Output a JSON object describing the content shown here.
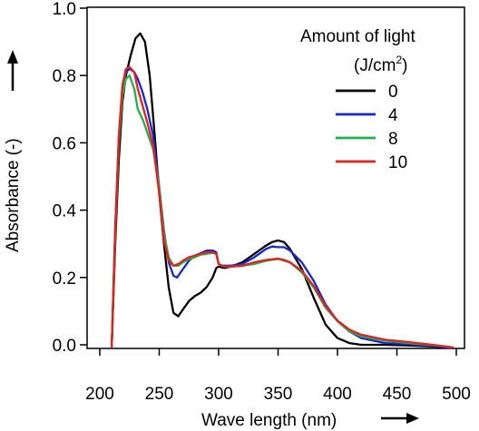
{
  "chart_data": {
    "type": "line",
    "xlabel": "Wave length (nm)",
    "ylabel": "Absorbance (-)",
    "xlim": [
      200,
      500
    ],
    "ylim": [
      0.0,
      1.0
    ],
    "x_ticks": [
      200,
      250,
      300,
      350,
      400,
      450,
      500
    ],
    "y_ticks": [
      "0.0",
      "0.2",
      "0.4",
      "0.6",
      "0.8",
      "1.0"
    ],
    "legend": {
      "title": "Amount of light",
      "unit_prefix": "(J/cm",
      "unit_sup": "2",
      "unit_suffix": ")",
      "placement": "top-right"
    },
    "grid": false,
    "series": [
      {
        "name": "0",
        "color": "#000000",
        "points": [
          [
            210,
            -0.01
          ],
          [
            213,
            0.3
          ],
          [
            216,
            0.55
          ],
          [
            219,
            0.72
          ],
          [
            222,
            0.8
          ],
          [
            226,
            0.86
          ],
          [
            230,
            0.91
          ],
          [
            234,
            0.925
          ],
          [
            238,
            0.9
          ],
          [
            242,
            0.8
          ],
          [
            246,
            0.63
          ],
          [
            250,
            0.45
          ],
          [
            254,
            0.3
          ],
          [
            258,
            0.17
          ],
          [
            262,
            0.095
          ],
          [
            266,
            0.085
          ],
          [
            270,
            0.105
          ],
          [
            275,
            0.13
          ],
          [
            280,
            0.145
          ],
          [
            285,
            0.155
          ],
          [
            290,
            0.172
          ],
          [
            295,
            0.2
          ],
          [
            298,
            0.228
          ],
          [
            300,
            0.232
          ],
          [
            305,
            0.228
          ],
          [
            310,
            0.232
          ],
          [
            320,
            0.245
          ],
          [
            330,
            0.27
          ],
          [
            340,
            0.295
          ],
          [
            345,
            0.305
          ],
          [
            350,
            0.31
          ],
          [
            355,
            0.305
          ],
          [
            360,
            0.285
          ],
          [
            370,
            0.225
          ],
          [
            380,
            0.14
          ],
          [
            390,
            0.06
          ],
          [
            400,
            0.02
          ],
          [
            410,
            0.005
          ],
          [
            420,
            0.0
          ],
          [
            440,
            0.0
          ],
          [
            460,
            -0.002
          ],
          [
            480,
            -0.005
          ],
          [
            498,
            -0.01
          ]
        ]
      },
      {
        "name": "4",
        "color": "#1428d2",
        "points": [
          [
            210,
            -0.01
          ],
          [
            213,
            0.35
          ],
          [
            216,
            0.62
          ],
          [
            219,
            0.76
          ],
          [
            222,
            0.81
          ],
          [
            225,
            0.82
          ],
          [
            229,
            0.81
          ],
          [
            232,
            0.79
          ],
          [
            236,
            0.75
          ],
          [
            240,
            0.7
          ],
          [
            245,
            0.62
          ],
          [
            250,
            0.47
          ],
          [
            254,
            0.34
          ],
          [
            258,
            0.245
          ],
          [
            262,
            0.205
          ],
          [
            265,
            0.2
          ],
          [
            270,
            0.225
          ],
          [
            275,
            0.25
          ],
          [
            280,
            0.265
          ],
          [
            285,
            0.272
          ],
          [
            290,
            0.28
          ],
          [
            295,
            0.28
          ],
          [
            298,
            0.275
          ],
          [
            300,
            0.24
          ],
          [
            303,
            0.235
          ],
          [
            310,
            0.235
          ],
          [
            320,
            0.24
          ],
          [
            330,
            0.26
          ],
          [
            340,
            0.285
          ],
          [
            345,
            0.292
          ],
          [
            350,
            0.29
          ],
          [
            355,
            0.29
          ],
          [
            360,
            0.28
          ],
          [
            370,
            0.245
          ],
          [
            380,
            0.19
          ],
          [
            390,
            0.12
          ],
          [
            400,
            0.07
          ],
          [
            410,
            0.04
          ],
          [
            420,
            0.02
          ],
          [
            440,
            0.005
          ],
          [
            460,
            0.002
          ],
          [
            480,
            -0.003
          ],
          [
            498,
            -0.01
          ]
        ]
      },
      {
        "name": "8",
        "color": "#22b14c",
        "points": [
          [
            210,
            -0.01
          ],
          [
            213,
            0.33
          ],
          [
            216,
            0.6
          ],
          [
            219,
            0.74
          ],
          [
            222,
            0.79
          ],
          [
            225,
            0.8
          ],
          [
            229,
            0.76
          ],
          [
            232,
            0.7
          ],
          [
            236,
            0.67
          ],
          [
            240,
            0.63
          ],
          [
            245,
            0.58
          ],
          [
            250,
            0.47
          ],
          [
            254,
            0.33
          ],
          [
            258,
            0.26
          ],
          [
            262,
            0.235
          ],
          [
            266,
            0.235
          ],
          [
            270,
            0.245
          ],
          [
            275,
            0.255
          ],
          [
            280,
            0.26
          ],
          [
            285,
            0.268
          ],
          [
            290,
            0.27
          ],
          [
            295,
            0.273
          ],
          [
            298,
            0.27
          ],
          [
            300,
            0.24
          ],
          [
            305,
            0.232
          ],
          [
            310,
            0.232
          ],
          [
            320,
            0.235
          ],
          [
            330,
            0.24
          ],
          [
            340,
            0.25
          ],
          [
            350,
            0.255
          ],
          [
            355,
            0.25
          ],
          [
            360,
            0.245
          ],
          [
            370,
            0.215
          ],
          [
            380,
            0.17
          ],
          [
            390,
            0.11
          ],
          [
            400,
            0.07
          ],
          [
            410,
            0.04
          ],
          [
            420,
            0.025
          ],
          [
            440,
            0.012
          ],
          [
            460,
            0.005
          ],
          [
            480,
            -0.001
          ],
          [
            498,
            -0.008
          ]
        ]
      },
      {
        "name": "10",
        "color": "#e8201c",
        "points": [
          [
            210,
            -0.01
          ],
          [
            213,
            0.34
          ],
          [
            216,
            0.62
          ],
          [
            219,
            0.77
          ],
          [
            222,
            0.82
          ],
          [
            225,
            0.825
          ],
          [
            229,
            0.81
          ],
          [
            232,
            0.76
          ],
          [
            236,
            0.71
          ],
          [
            240,
            0.66
          ],
          [
            245,
            0.59
          ],
          [
            250,
            0.45
          ],
          [
            254,
            0.31
          ],
          [
            258,
            0.25
          ],
          [
            262,
            0.235
          ],
          [
            266,
            0.24
          ],
          [
            270,
            0.25
          ],
          [
            275,
            0.26
          ],
          [
            280,
            0.265
          ],
          [
            285,
            0.27
          ],
          [
            290,
            0.275
          ],
          [
            295,
            0.275
          ],
          [
            298,
            0.27
          ],
          [
            300,
            0.24
          ],
          [
            305,
            0.232
          ],
          [
            310,
            0.232
          ],
          [
            320,
            0.235
          ],
          [
            330,
            0.245
          ],
          [
            340,
            0.252
          ],
          [
            350,
            0.256
          ],
          [
            355,
            0.252
          ],
          [
            360,
            0.245
          ],
          [
            370,
            0.22
          ],
          [
            380,
            0.175
          ],
          [
            390,
            0.115
          ],
          [
            400,
            0.072
          ],
          [
            410,
            0.045
          ],
          [
            420,
            0.03
          ],
          [
            440,
            0.015
          ],
          [
            460,
            0.008
          ],
          [
            480,
            0.0
          ],
          [
            498,
            -0.008
          ]
        ]
      }
    ]
  }
}
